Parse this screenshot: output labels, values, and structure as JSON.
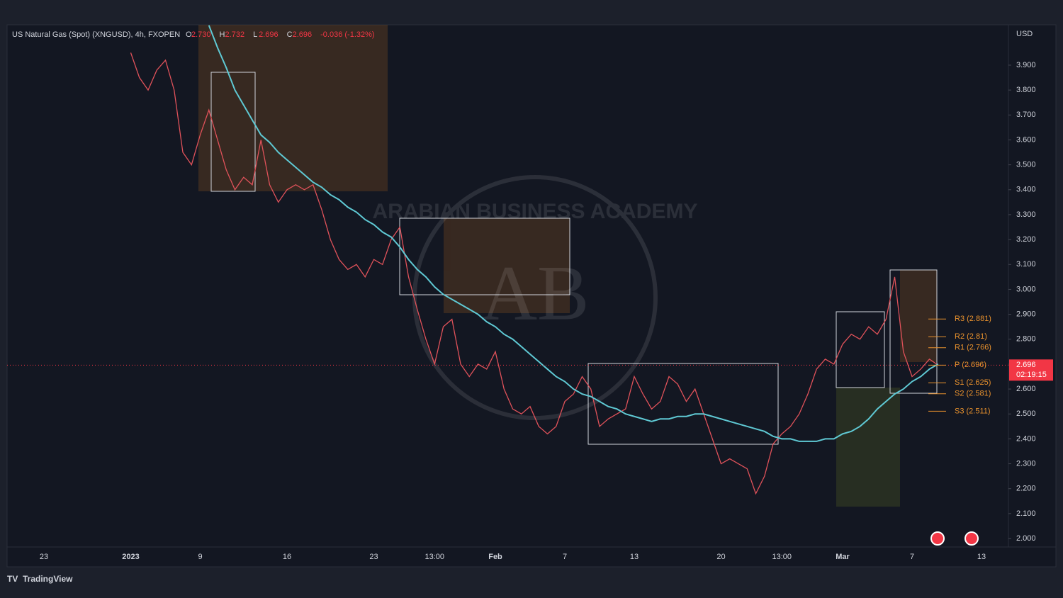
{
  "chart_data": {
    "type": "line",
    "title": "US Natural Gas (Spot) (XNGUSD), 4h, FXOPEN",
    "ohlc": [
      {
        "key": "O",
        "value": "2.730"
      },
      {
        "key": "H",
        "value": "2.732"
      },
      {
        "key": "L",
        "value": "2.696"
      },
      {
        "key": "C",
        "value": "2.696"
      }
    ],
    "change": "-0.036 (-1.32%)",
    "currency": "USD",
    "brand": "TradingView",
    "watermark": "ARABIAN BUSINESS ACADEMY",
    "watermark_logo": "AB",
    "categories": [
      null,
      null,
      null,
      null,
      "23",
      null,
      null,
      null,
      null,
      null,
      null,
      null,
      null,
      null,
      "2023",
      null,
      null,
      null,
      null,
      null,
      null,
      null,
      "9",
      null,
      null,
      null,
      null,
      null,
      null,
      null,
      null,
      null,
      "16",
      null,
      null,
      null,
      null,
      null,
      null,
      null,
      null,
      null,
      "23",
      null,
      null,
      null,
      null,
      null,
      null,
      "13:00",
      null,
      null,
      null,
      null,
      null,
      null,
      "Feb",
      null,
      null,
      null,
      null,
      null,
      null,
      null,
      "7",
      null,
      null,
      null,
      null,
      null,
      null,
      null,
      "13",
      null,
      null,
      null,
      null,
      null,
      null,
      null,
      null,
      null,
      "20",
      null,
      null,
      null,
      null,
      null,
      null,
      "13:00",
      null,
      null,
      null,
      null,
      null,
      null,
      "Mar",
      null,
      null,
      null,
      null,
      null,
      null,
      null,
      "7",
      null,
      null,
      null,
      null,
      null,
      null,
      null,
      "13",
      null,
      null,
      null
    ],
    "series": [
      {
        "color": "#e0525a",
        "values": [
          null,
          null,
          null,
          null,
          null,
          null,
          null,
          null,
          null,
          null,
          null,
          null,
          null,
          null,
          3.95,
          3.85,
          3.8,
          3.88,
          3.92,
          3.8,
          3.55,
          3.5,
          3.62,
          3.72,
          3.6,
          3.48,
          3.4,
          3.45,
          3.42,
          3.6,
          3.42,
          3.35,
          3.4,
          3.42,
          3.4,
          3.42,
          3.32,
          3.2,
          3.12,
          3.08,
          3.1,
          3.05,
          3.12,
          3.1,
          3.2,
          3.25,
          3.05,
          2.92,
          2.8,
          2.7,
          2.85,
          2.88,
          2.7,
          2.65,
          2.7,
          2.68,
          2.75,
          2.6,
          2.52,
          2.5,
          2.53,
          2.45,
          2.42,
          2.45,
          2.55,
          2.58,
          2.65,
          2.6,
          2.45,
          2.48,
          2.5,
          2.52,
          2.65,
          2.58,
          2.52,
          2.55,
          2.65,
          2.62,
          2.55,
          2.6,
          2.5,
          2.4,
          2.3,
          2.32,
          2.3,
          2.28,
          2.18,
          2.25,
          2.38,
          2.42,
          2.45,
          2.5,
          2.58,
          2.68,
          2.72,
          2.7,
          2.78,
          2.82,
          2.8,
          2.85,
          2.82,
          2.88,
          3.05,
          2.75,
          2.65,
          2.68,
          2.72,
          2.696,
          null,
          null,
          null,
          null,
          null,
          null,
          null,
          null
        ]
      },
      {
        "color": "#5fc9d4",
        "values": [
          null,
          null,
          null,
          null,
          null,
          null,
          null,
          null,
          null,
          null,
          null,
          null,
          null,
          null,
          null,
          null,
          null,
          null,
          null,
          null,
          null,
          null,
          null,
          4.06,
          3.97,
          3.89,
          3.8,
          3.74,
          3.68,
          3.62,
          3.59,
          3.55,
          3.52,
          3.49,
          3.46,
          3.43,
          3.41,
          3.38,
          3.36,
          3.33,
          3.31,
          3.28,
          3.26,
          3.23,
          3.21,
          3.17,
          3.12,
          3.08,
          3.05,
          3.01,
          2.98,
          2.96,
          2.94,
          2.92,
          2.9,
          2.87,
          2.85,
          2.82,
          2.8,
          2.77,
          2.74,
          2.71,
          2.68,
          2.65,
          2.63,
          2.6,
          2.58,
          2.57,
          2.55,
          2.53,
          2.52,
          2.5,
          2.49,
          2.48,
          2.47,
          2.48,
          2.48,
          2.49,
          2.49,
          2.5,
          2.5,
          2.49,
          2.48,
          2.47,
          2.46,
          2.45,
          2.44,
          2.43,
          2.41,
          2.4,
          2.4,
          2.39,
          2.39,
          2.39,
          2.4,
          2.4,
          2.42,
          2.43,
          2.45,
          2.48,
          2.52,
          2.55,
          2.58,
          2.6,
          2.63,
          2.65,
          2.68,
          2.7,
          null,
          null,
          null,
          null,
          null,
          null,
          null,
          null
        ]
      }
    ],
    "pivots": [
      {
        "value": 2.881,
        "label": "R3 (2.881)"
      },
      {
        "value": 2.81,
        "label": "R2 (2.81)"
      },
      {
        "value": 2.766,
        "label": "R1 (2.766)"
      },
      {
        "value": 2.696,
        "label": "P (2.696)"
      },
      {
        "value": 2.625,
        "label": "S1 (2.625)"
      },
      {
        "value": 2.581,
        "label": "S2 (2.581)"
      },
      {
        "value": 2.511,
        "label": "S3 (2.511)"
      }
    ],
    "pivot_color": "#e8912d",
    "last_price": {
      "value": 2.696,
      "label": "2.696"
    },
    "countdown": "02:19:15",
    "ylim": [
      1.966,
      4.062
    ],
    "yticks": [
      {
        "value": 2.0,
        "label": "2.000"
      },
      {
        "value": 2.1,
        "label": "2.100"
      },
      {
        "value": 2.2,
        "label": "2.200"
      },
      {
        "value": 2.3,
        "label": "2.300"
      },
      {
        "value": 2.4,
        "label": "2.400"
      },
      {
        "value": 2.5,
        "label": "2.500"
      },
      {
        "value": 2.6,
        "label": "2.600"
      },
      {
        "value": 2.7,
        "label": "2.700"
      },
      {
        "value": 2.8,
        "label": "2.800"
      },
      {
        "value": 2.9,
        "label": "2.900"
      },
      {
        "value": 3.0,
        "label": "3.000"
      },
      {
        "value": 3.1,
        "label": "3.100"
      },
      {
        "value": 3.2,
        "label": "3.200"
      },
      {
        "value": 3.3,
        "label": "3.300"
      },
      {
        "value": 3.4,
        "label": "3.400"
      },
      {
        "value": 3.5,
        "label": "3.500"
      },
      {
        "value": 3.6,
        "label": "3.600"
      },
      {
        "value": 3.7,
        "label": "3.700"
      },
      {
        "value": 3.8,
        "label": "3.800"
      },
      {
        "value": 3.9,
        "label": "3.900"
      }
    ]
  }
}
